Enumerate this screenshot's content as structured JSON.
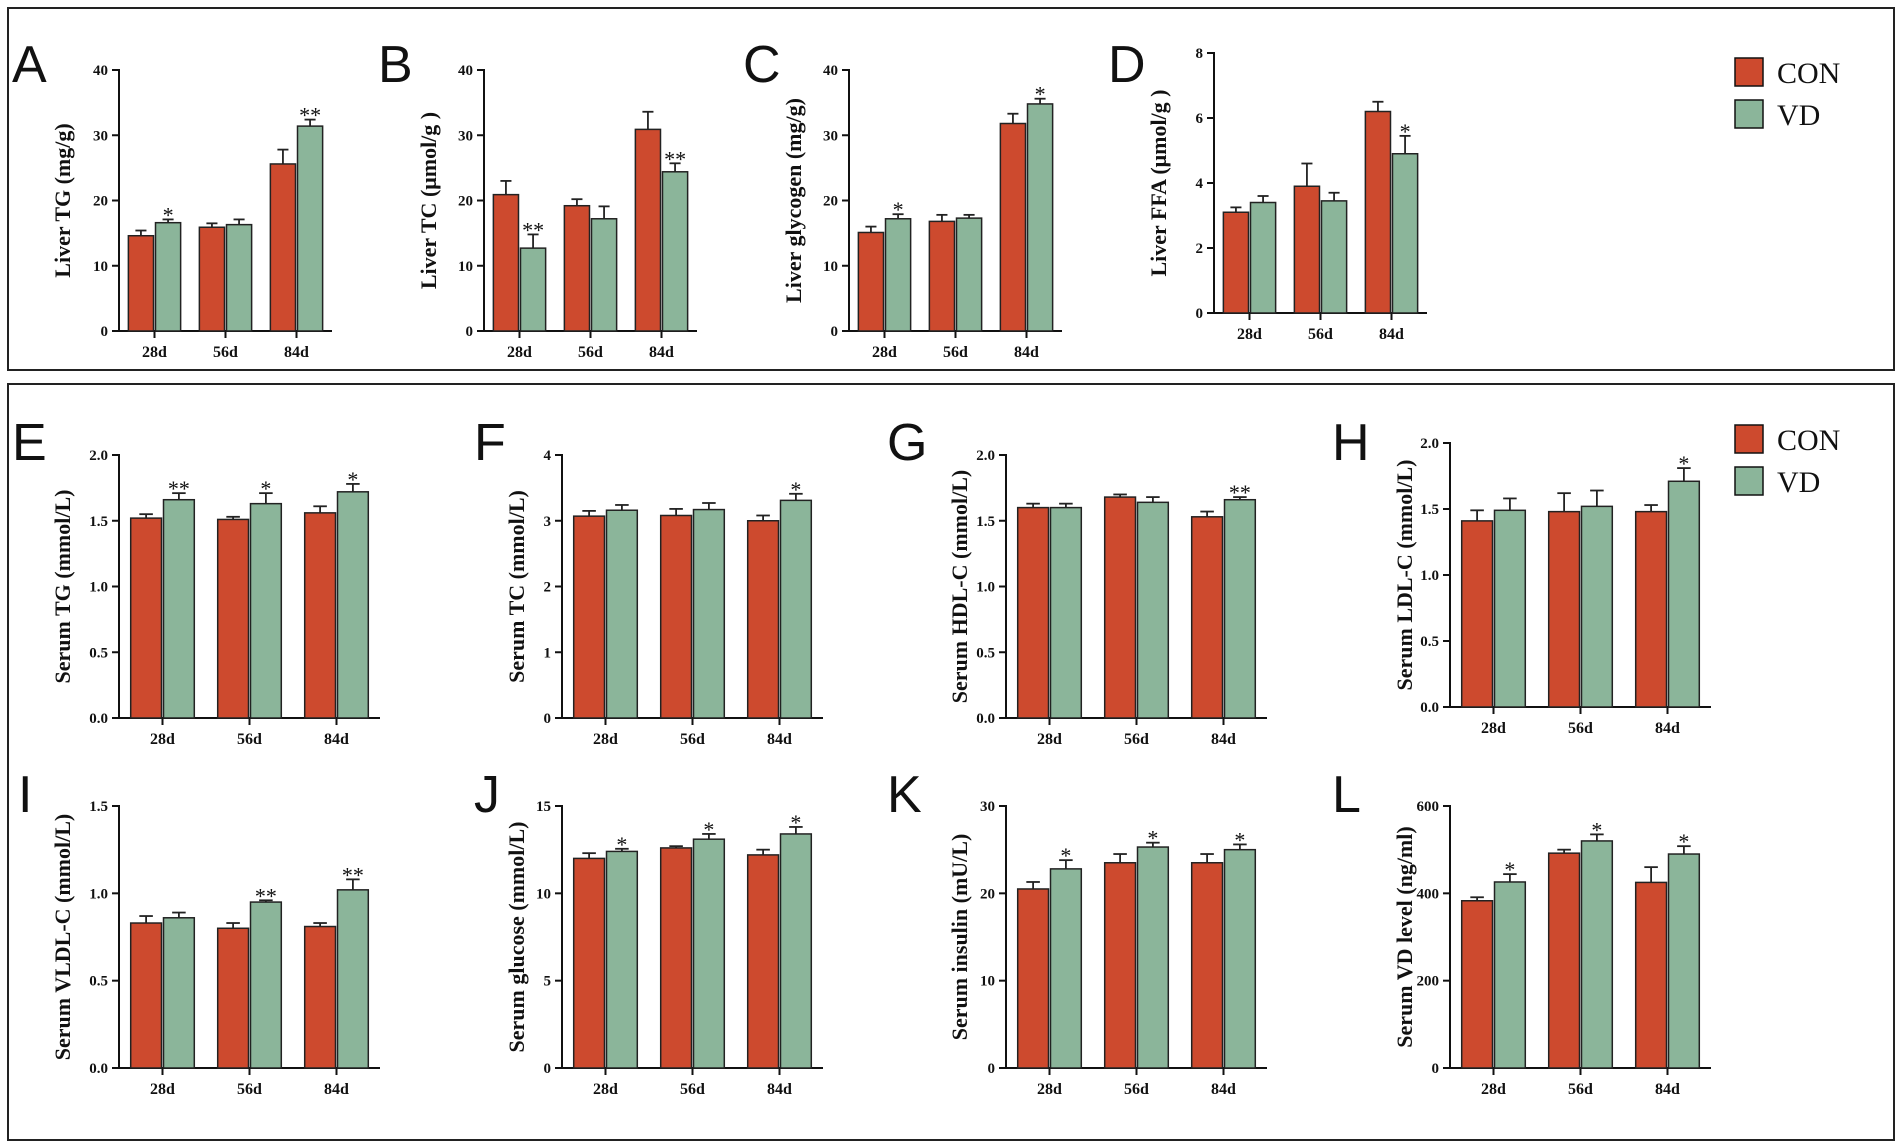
{
  "colors": {
    "con": "#cd4a2e",
    "vd": "#8bb59a",
    "axis": "#111111",
    "frame": "#222222"
  },
  "legend": {
    "con_label": "CON",
    "vd_label": "VD"
  },
  "chart_data": [
    {
      "id": "A",
      "letter": "A",
      "type": "bar",
      "ylabel": "Liver TG (mg/g)",
      "ylim": [
        0,
        40
      ],
      "yticks": [
        0,
        10,
        20,
        30,
        40
      ],
      "categories": [
        "28d",
        "56d",
        "84d"
      ],
      "series": [
        {
          "name": "CON",
          "values": [
            14.6,
            15.9,
            25.6
          ],
          "errors": [
            0.8,
            0.6,
            2.2
          ]
        },
        {
          "name": "VD",
          "values": [
            16.6,
            16.3,
            31.4
          ],
          "errors": [
            0.5,
            0.8,
            1.0
          ]
        }
      ],
      "significance": [
        "*",
        "",
        "**"
      ]
    },
    {
      "id": "B",
      "letter": "B",
      "type": "bar",
      "ylabel": "Liver TC (μmol/g )",
      "ylim": [
        0,
        40
      ],
      "yticks": [
        0,
        10,
        20,
        30,
        40
      ],
      "categories": [
        "28d",
        "56d",
        "84d"
      ],
      "series": [
        {
          "name": "CON",
          "values": [
            20.9,
            19.2,
            30.9
          ],
          "errors": [
            2.1,
            1.0,
            2.7
          ]
        },
        {
          "name": "VD",
          "values": [
            12.7,
            17.2,
            24.4
          ],
          "errors": [
            2.1,
            1.9,
            1.3
          ]
        }
      ],
      "significance": [
        "**",
        "",
        "**"
      ]
    },
    {
      "id": "C",
      "letter": "C",
      "type": "bar",
      "ylabel": "Liver glycogen (mg/g)",
      "ylim": [
        0,
        40
      ],
      "yticks": [
        0,
        10,
        20,
        30,
        40
      ],
      "categories": [
        "28d",
        "56d",
        "84d"
      ],
      "series": [
        {
          "name": "CON",
          "values": [
            15.1,
            16.8,
            31.8
          ],
          "errors": [
            0.9,
            1.0,
            1.5
          ]
        },
        {
          "name": "VD",
          "values": [
            17.2,
            17.3,
            34.8
          ],
          "errors": [
            0.7,
            0.5,
            0.8
          ]
        }
      ],
      "significance": [
        "*",
        "",
        "*"
      ]
    },
    {
      "id": "D",
      "letter": "D",
      "type": "bar",
      "ylabel": "Liver FFA (μmol/g )",
      "ylim": [
        0,
        8
      ],
      "yticks": [
        0,
        2,
        4,
        6,
        8
      ],
      "categories": [
        "28d",
        "56d",
        "84d"
      ],
      "series": [
        {
          "name": "CON",
          "values": [
            3.1,
            3.9,
            6.2
          ],
          "errors": [
            0.15,
            0.7,
            0.3
          ]
        },
        {
          "name": "VD",
          "values": [
            3.4,
            3.45,
            4.9
          ],
          "errors": [
            0.2,
            0.25,
            0.55
          ]
        }
      ],
      "significance": [
        "",
        "",
        "*"
      ]
    },
    {
      "id": "E",
      "letter": "E",
      "type": "bar",
      "ylabel": "Serum TG (mmol/L)",
      "ylim": [
        0,
        2.0
      ],
      "yticks": [
        0.0,
        0.5,
        1.0,
        1.5,
        2.0
      ],
      "categories": [
        "28d",
        "56d",
        "84d"
      ],
      "series": [
        {
          "name": "CON",
          "values": [
            1.52,
            1.51,
            1.56
          ],
          "errors": [
            0.03,
            0.02,
            0.05
          ]
        },
        {
          "name": "VD",
          "values": [
            1.66,
            1.63,
            1.72
          ],
          "errors": [
            0.05,
            0.08,
            0.06
          ]
        }
      ],
      "significance": [
        "**",
        "*",
        "*"
      ]
    },
    {
      "id": "F",
      "letter": "F",
      "type": "bar",
      "ylabel": "Serum TC (mmol/L)",
      "ylim": [
        0,
        4
      ],
      "yticks": [
        0,
        1,
        2,
        3,
        4
      ],
      "categories": [
        "28d",
        "56d",
        "84d"
      ],
      "series": [
        {
          "name": "CON",
          "values": [
            3.07,
            3.08,
            3.0
          ],
          "errors": [
            0.08,
            0.1,
            0.08
          ]
        },
        {
          "name": "VD",
          "values": [
            3.16,
            3.17,
            3.31
          ],
          "errors": [
            0.08,
            0.1,
            0.1
          ]
        }
      ],
      "significance": [
        "",
        "",
        "*"
      ]
    },
    {
      "id": "G",
      "letter": "G",
      "type": "bar",
      "ylabel": "Serum HDL-C (mmol/L)",
      "ylim": [
        0,
        2.0
      ],
      "yticks": [
        0.0,
        0.5,
        1.0,
        1.5,
        2.0
      ],
      "categories": [
        "28d",
        "56d",
        "84d"
      ],
      "series": [
        {
          "name": "CON",
          "values": [
            1.6,
            1.68,
            1.53
          ],
          "errors": [
            0.03,
            0.02,
            0.04
          ]
        },
        {
          "name": "VD",
          "values": [
            1.6,
            1.64,
            1.66
          ],
          "errors": [
            0.03,
            0.04,
            0.02
          ]
        }
      ],
      "significance": [
        "",
        "",
        "**"
      ]
    },
    {
      "id": "H",
      "letter": "H",
      "type": "bar",
      "ylabel": "Serum LDL-C (mmol/L)",
      "ylim": [
        0,
        2.0
      ],
      "yticks": [
        0.0,
        0.5,
        1.0,
        1.5,
        2.0
      ],
      "categories": [
        "28d",
        "56d",
        "84d"
      ],
      "series": [
        {
          "name": "CON",
          "values": [
            1.41,
            1.48,
            1.48
          ],
          "errors": [
            0.08,
            0.14,
            0.05
          ]
        },
        {
          "name": "VD",
          "values": [
            1.49,
            1.52,
            1.71
          ],
          "errors": [
            0.09,
            0.12,
            0.1
          ]
        }
      ],
      "significance": [
        "",
        "",
        "*"
      ]
    },
    {
      "id": "I",
      "letter": "I",
      "type": "bar",
      "ylabel": "Serum VLDL-C (mmol/L)",
      "ylim": [
        0,
        1.5
      ],
      "yticks": [
        0.0,
        0.5,
        1.0,
        1.5
      ],
      "categories": [
        "28d",
        "56d",
        "84d"
      ],
      "series": [
        {
          "name": "CON",
          "values": [
            0.83,
            0.8,
            0.81
          ],
          "errors": [
            0.04,
            0.03,
            0.02
          ]
        },
        {
          "name": "VD",
          "values": [
            0.86,
            0.95,
            1.02
          ],
          "errors": [
            0.03,
            0.01,
            0.06
          ]
        }
      ],
      "significance": [
        "",
        "**",
        "**"
      ]
    },
    {
      "id": "J",
      "letter": "J",
      "type": "bar",
      "ylabel": "Serum glucose (mmol/L)",
      "ylim": [
        0,
        15
      ],
      "yticks": [
        0,
        5,
        10,
        15
      ],
      "categories": [
        "28d",
        "56d",
        "84d"
      ],
      "series": [
        {
          "name": "CON",
          "values": [
            12.0,
            12.6,
            12.2
          ],
          "errors": [
            0.3,
            0.1,
            0.3
          ]
        },
        {
          "name": "VD",
          "values": [
            12.4,
            13.1,
            13.4
          ],
          "errors": [
            0.15,
            0.3,
            0.4
          ]
        }
      ],
      "significance": [
        "*",
        "*",
        "*"
      ]
    },
    {
      "id": "K",
      "letter": "K",
      "type": "bar",
      "ylabel": "Serum insulin (mU/L)",
      "ylim": [
        0,
        30
      ],
      "yticks": [
        0,
        10,
        20,
        30
      ],
      "categories": [
        "28d",
        "56d",
        "84d"
      ],
      "series": [
        {
          "name": "CON",
          "values": [
            20.5,
            23.5,
            23.5
          ],
          "errors": [
            0.8,
            1.0,
            1.0
          ]
        },
        {
          "name": "VD",
          "values": [
            22.8,
            25.3,
            25.0
          ],
          "errors": [
            1.0,
            0.5,
            0.6
          ]
        }
      ],
      "significance": [
        "*",
        "*",
        "*"
      ]
    },
    {
      "id": "L",
      "letter": "L",
      "type": "bar",
      "ylabel": "Serum VD level (ng/ml)",
      "ylim": [
        0,
        600
      ],
      "yticks": [
        0,
        200,
        400,
        600
      ],
      "categories": [
        "28d",
        "56d",
        "84d"
      ],
      "series": [
        {
          "name": "CON",
          "values": [
            383,
            492,
            425
          ],
          "errors": [
            8,
            8,
            35
          ]
        },
        {
          "name": "VD",
          "values": [
            426,
            520,
            490
          ],
          "errors": [
            18,
            15,
            18
          ]
        }
      ],
      "significance": [
        "*",
        "*",
        "*"
      ]
    }
  ]
}
